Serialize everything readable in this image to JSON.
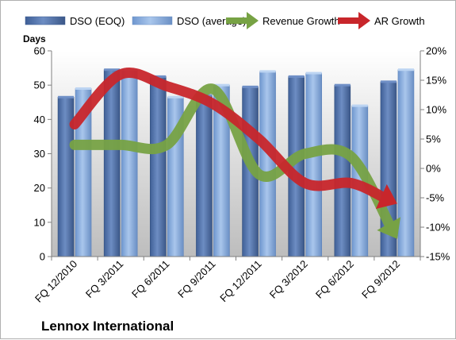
{
  "chart_data": {
    "type": "bar",
    "title": "",
    "company": "Lennox International",
    "ylabel": "Days",
    "categories": [
      "FQ 12/2010",
      "FQ 3/2011",
      "FQ 6/2011",
      "FQ 9/2011",
      "FQ 12/2011",
      "FQ 3/2012",
      "FQ 6/2012",
      "FQ 9/2012"
    ],
    "ylim": [
      0,
      60
    ],
    "yticks": [
      0,
      10,
      20,
      30,
      40,
      50,
      60
    ],
    "y2lim": [
      -15,
      20
    ],
    "y2ticks": [
      "-15%",
      "-10%",
      "-5%",
      "0%",
      "5%",
      "10%",
      "15%",
      "20%"
    ],
    "y2tick_values": [
      -15,
      -10,
      -5,
      0,
      5,
      10,
      15,
      20
    ],
    "legend_position": "top",
    "grid": false,
    "series": [
      {
        "name": "DSO (EOQ)",
        "axis": "left",
        "kind": "bar",
        "color": "#4f6fa5",
        "values": [
          46.5,
          54.5,
          52.5,
          47,
          49.5,
          52.5,
          50,
          51
        ]
      },
      {
        "name": "DSO (average)",
        "axis": "left",
        "kind": "bar",
        "color": "#8fb2df",
        "values": [
          49,
          54.5,
          46.5,
          50,
          54,
          53.5,
          44,
          54.5
        ]
      },
      {
        "name": "Revenue Growth",
        "axis": "right",
        "kind": "arrow",
        "color": "#77a244",
        "values": [
          4,
          4,
          4,
          13.5,
          -1,
          2.5,
          2,
          -12
        ]
      },
      {
        "name": "AR Growth",
        "axis": "right",
        "kind": "arrow",
        "color": "#c8262b",
        "values": [
          7.5,
          16,
          14,
          11,
          5,
          -2.5,
          -2.5,
          -6
        ]
      }
    ]
  }
}
